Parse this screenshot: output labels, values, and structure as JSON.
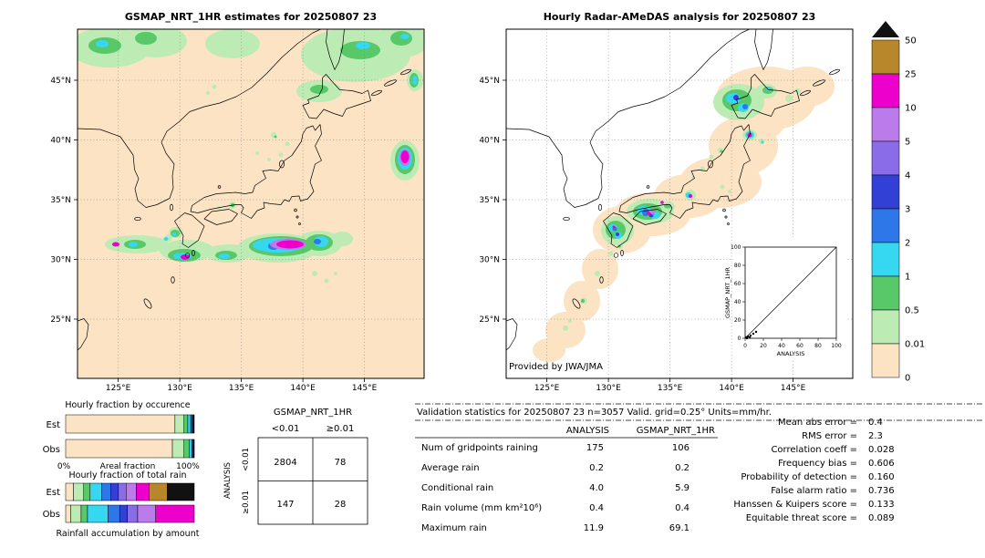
{
  "figure": {
    "left_map": {
      "title": "GSMAP_NRT_1HR estimates for 20250807 23"
    },
    "right_map": {
      "title": "Hourly Radar-AMeDAS analysis for 20250807 23",
      "credit": "Provided by JWA/JMA"
    },
    "lat_ticks": [
      "45°N",
      "40°N",
      "35°N",
      "30°N",
      "25°N"
    ],
    "lon_ticks": [
      "125°E",
      "130°E",
      "135°E",
      "140°E",
      "145°E"
    ]
  },
  "colorbar": {
    "labels": [
      "50",
      "25",
      "10",
      "5",
      "4",
      "3",
      "2",
      "1",
      "0.5",
      "0.01",
      "0"
    ],
    "segment_colors_top_to_bottom": [
      "#B8872B",
      "#EE00CC",
      "#BB7BEB",
      "#8A6BE8",
      "#3340D6",
      "#2E77E8",
      "#35D8F0",
      "#58C868",
      "#BDEBB4",
      "#FBE3C3"
    ],
    "overflow_color": "#111111",
    "units": "mm/hr"
  },
  "inset": {
    "xlabel": "ANALYSIS",
    "ylabel": "GSMAP_NRT_1HR",
    "ticks": [
      "0",
      "20",
      "40",
      "60",
      "80",
      "100"
    ],
    "points": [
      [
        1,
        1
      ],
      [
        2,
        0
      ],
      [
        3,
        2
      ],
      [
        5,
        1
      ],
      [
        6,
        3
      ],
      [
        9,
        5
      ],
      [
        12,
        7
      ]
    ]
  },
  "occurrence": {
    "title": "Hourly fraction by occurence",
    "row_labels": [
      "Est",
      "Obs"
    ],
    "axis_left": "0%",
    "axis_center": "Areal fraction",
    "axis_right": "100%"
  },
  "accumulation": {
    "title": "Hourly fraction of total rain",
    "row_labels": [
      "Est",
      "Obs"
    ],
    "caption": "Rainfall accumulation by amount"
  },
  "stacked_bars": {
    "occurrence": [
      {
        "label": "Est",
        "segments": [
          [
            "#FBE3C3",
            85
          ],
          [
            "#BDEBB4",
            7
          ],
          [
            "#58C868",
            3
          ],
          [
            "#35D8F0",
            2.2
          ],
          [
            "#2E77E8",
            1.2
          ],
          [
            "#3340D6",
            0.6
          ],
          [
            "#8A6BE8",
            0.4
          ],
          [
            "#BB7BEB",
            0.3
          ],
          [
            "#EE00CC",
            0.3
          ]
        ]
      },
      {
        "label": "Obs",
        "segments": [
          [
            "#FBE3C3",
            83
          ],
          [
            "#BDEBB4",
            9
          ],
          [
            "#58C868",
            4
          ],
          [
            "#35D8F0",
            2
          ],
          [
            "#2E77E8",
            1
          ],
          [
            "#3340D6",
            0.4
          ],
          [
            "#8A6BE8",
            0.3
          ],
          [
            "#BB7BEB",
            0.2
          ],
          [
            "#EE00CC",
            0.1
          ]
        ]
      }
    ],
    "accumulation": [
      {
        "label": "Est",
        "segments": [
          [
            "#FBE3C3",
            6
          ],
          [
            "#BDEBB4",
            8
          ],
          [
            "#58C868",
            5
          ],
          [
            "#35D8F0",
            9
          ],
          [
            "#2E77E8",
            7
          ],
          [
            "#3340D6",
            6
          ],
          [
            "#8A6BE8",
            6
          ],
          [
            "#BB7BEB",
            8
          ],
          [
            "#EE00CC",
            10
          ],
          [
            "#B8872B",
            14
          ],
          [
            "#111111",
            21
          ]
        ]
      },
      {
        "label": "Obs",
        "segments": [
          [
            "#FBE3C3",
            4
          ],
          [
            "#BDEBB4",
            8
          ],
          [
            "#58C868",
            5
          ],
          [
            "#35D8F0",
            16
          ],
          [
            "#2E77E8",
            9
          ],
          [
            "#3340D6",
            6
          ],
          [
            "#8A6BE8",
            8
          ],
          [
            "#BB7BEB",
            14
          ],
          [
            "#EE00CC",
            30
          ]
        ]
      }
    ]
  },
  "contingency": {
    "title": "GSMAP_NRT_1HR",
    "col_headers": [
      "<0.01",
      "≥0.01"
    ],
    "row_axis": "ANALYSIS",
    "row_headers": [
      "<0.01",
      "≥0.01"
    ],
    "values": [
      [
        "2804",
        "78"
      ],
      [
        "147",
        "28"
      ]
    ]
  },
  "stats": {
    "title": "Validation statistics for 20250807 23  n=3057 Valid. grid=0.25° Units=mm/hr.",
    "col_headers": [
      "ANALYSIS",
      "GSMAP_NRT_1HR"
    ],
    "rows": [
      {
        "label": "Num of gridpoints raining",
        "analysis": "175",
        "gsmap": "106"
      },
      {
        "label": "Average rain",
        "analysis": "0.2",
        "gsmap": "0.2"
      },
      {
        "label": "Conditional rain",
        "analysis": "4.0",
        "gsmap": "5.9"
      },
      {
        "label": "Rain volume (mm km²10⁶)",
        "analysis": "0.4",
        "gsmap": "0.4"
      },
      {
        "label": "Maximum rain",
        "analysis": "11.9",
        "gsmap": "69.1"
      }
    ],
    "scores": [
      {
        "label": "Mean abs error =",
        "value": "0.4"
      },
      {
        "label": "RMS error =",
        "value": "2.3"
      },
      {
        "label": "Correlation coeff =",
        "value": "0.028"
      },
      {
        "label": "Frequency bias =",
        "value": "0.606"
      },
      {
        "label": "Probability of detection =",
        "value": "0.160"
      },
      {
        "label": "False alarm ratio =",
        "value": "0.736"
      },
      {
        "label": "Hanssen & Kuipers score =",
        "value": "0.133"
      },
      {
        "label": "Equitable threat score =",
        "value": "0.089"
      }
    ]
  },
  "chart_data": [
    {
      "type": "heatmap",
      "title": "GSMAP_NRT_1HR estimates for 20250807 23",
      "units": "mm/hr",
      "x_ticks": [
        "125°E",
        "130°E",
        "135°E",
        "140°E",
        "145°E"
      ],
      "y_ticks": [
        "45°N",
        "40°N",
        "35°N",
        "30°N",
        "25°N"
      ],
      "scale_levels": [
        0,
        0.01,
        0.5,
        1,
        2,
        3,
        4,
        5,
        10,
        25,
        50
      ],
      "scale_colors_low_to_high": [
        "#FBE3C3",
        "#BDEBB4",
        "#58C868",
        "#35D8F0",
        "#2E77E8",
        "#3340D6",
        "#8A6BE8",
        "#BB7BEB",
        "#EE00CC",
        "#B8872B",
        "#111111"
      ],
      "max_value": 69.1
    },
    {
      "type": "heatmap",
      "title": "Hourly Radar-AMeDAS analysis for 20250807 23",
      "units": "mm/hr",
      "credit": "Provided by JWA/JMA",
      "max_value": 11.9
    },
    {
      "type": "scatter",
      "title": "GSMAP_NRT_1HR vs ANALYSIS (inset)",
      "xlabel": "ANALYSIS",
      "ylabel": "GSMAP_NRT_1HR",
      "xlim": [
        0,
        100
      ],
      "ylim": [
        0,
        100
      ],
      "diagonal": true,
      "points_approx": [
        [
          1,
          1
        ],
        [
          2,
          0
        ],
        [
          3,
          2
        ],
        [
          5,
          1
        ],
        [
          6,
          3
        ],
        [
          9,
          5
        ],
        [
          12,
          7
        ]
      ]
    },
    {
      "type": "bar",
      "subtype": "stacked-horizontal",
      "title": "Hourly fraction by occurence",
      "xlabel": "Areal fraction",
      "xlim_pct": [
        0,
        100
      ],
      "categories": [
        "Est",
        "Obs"
      ],
      "levels": [
        "0-0.01",
        "0.01-0.5",
        "0.5-1",
        "1-2",
        "2-3",
        "3-4",
        "4-5",
        "5-10",
        "10-25"
      ],
      "series": [
        {
          "name": "Est",
          "values_pct": [
            85,
            7,
            3,
            2.2,
            1.2,
            0.6,
            0.4,
            0.3,
            0.3
          ]
        },
        {
          "name": "Obs",
          "values_pct": [
            83,
            9,
            4,
            2,
            1,
            0.4,
            0.3,
            0.2,
            0.1
          ]
        }
      ]
    },
    {
      "type": "bar",
      "subtype": "stacked-horizontal",
      "title": "Hourly fraction of total rain",
      "caption": "Rainfall accumulation by amount",
      "categories": [
        "Est",
        "Obs"
      ],
      "levels": [
        "0-0.01",
        "0.01-0.5",
        "0.5-1",
        "1-2",
        "2-3",
        "3-4",
        "4-5",
        "5-10",
        "10-25",
        "25-50",
        ">50"
      ],
      "series": [
        {
          "name": "Est",
          "values_pct": [
            6,
            8,
            5,
            9,
            7,
            6,
            6,
            8,
            10,
            14,
            21
          ]
        },
        {
          "name": "Obs",
          "values_pct": [
            4,
            8,
            5,
            16,
            9,
            6,
            8,
            14,
            30,
            0,
            0
          ]
        }
      ]
    },
    {
      "type": "table",
      "title": "Contingency table (ANALYSIS rows × GSMAP_NRT_1HR columns, gridpoints)",
      "columns": [
        "<0.01",
        "≥0.01"
      ],
      "rows": [
        {
          "label": "<0.01",
          "values": [
            2804,
            78
          ]
        },
        {
          "label": "≥0.01",
          "values": [
            147,
            28
          ]
        }
      ]
    },
    {
      "type": "table",
      "title": "Validation statistics for 20250807 23 n=3057 Valid. grid=0.25° Units=mm/hr.",
      "columns": [
        "ANALYSIS",
        "GSMAP_NRT_1HR"
      ],
      "rows": [
        [
          "Num of gridpoints raining",
          175,
          106
        ],
        [
          "Average rain",
          0.2,
          0.2
        ],
        [
          "Conditional rain",
          4.0,
          5.9
        ],
        [
          "Rain volume (mm km²10⁶)",
          0.4,
          0.4
        ],
        [
          "Maximum rain",
          11.9,
          69.1
        ]
      ],
      "scores": {
        "Mean abs error": 0.4,
        "RMS error": 2.3,
        "Correlation coeff": 0.028,
        "Frequency bias": 0.606,
        "Probability of detection": 0.16,
        "False alarm ratio": 0.736,
        "Hanssen & Kuipers score": 0.133,
        "Equitable threat score": 0.089
      }
    }
  ]
}
